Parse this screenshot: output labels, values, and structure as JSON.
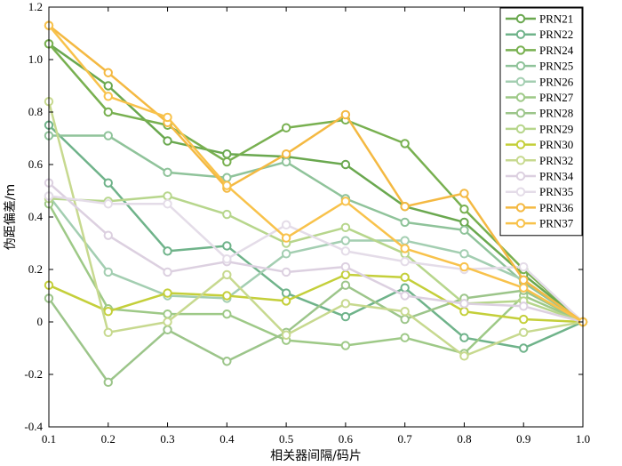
{
  "chart_data": {
    "type": "line",
    "title": "",
    "xlabel": "相关器间隔/码片",
    "ylabel": "伪距偏差/m",
    "xlim": [
      0.1,
      1.0
    ],
    "ylim": [
      -0.4,
      1.2
    ],
    "x_ticks": [
      "0.1",
      "0.2",
      "0.3",
      "0.4",
      "0.5",
      "0.6",
      "0.7",
      "0.8",
      "0.9",
      "1.0"
    ],
    "y_ticks": [
      "-0.4",
      "-0.2",
      "0",
      "0.2",
      "0.4",
      "0.6",
      "0.8",
      "1.0",
      "1.2"
    ],
    "grid": false,
    "legend_position": "top-right",
    "x": [
      0.1,
      0.2,
      0.3,
      0.4,
      0.5,
      0.6,
      0.7,
      0.8,
      0.9,
      1.0
    ],
    "series": [
      {
        "name": "PRN21",
        "color": "#6aa84f",
        "values": [
          1.06,
          0.9,
          0.69,
          0.64,
          0.63,
          0.6,
          0.44,
          0.38,
          0.18,
          0.0
        ]
      },
      {
        "name": "PRN22",
        "color": "#6fb38a",
        "values": [
          0.75,
          0.53,
          0.27,
          0.29,
          0.11,
          0.02,
          0.13,
          -0.06,
          -0.1,
          0.0
        ]
      },
      {
        "name": "PRN24",
        "color": "#78b050",
        "values": [
          1.06,
          0.8,
          0.75,
          0.61,
          0.74,
          0.77,
          0.68,
          0.43,
          0.2,
          0.0
        ]
      },
      {
        "name": "PRN25",
        "color": "#8fc39a",
        "values": [
          0.71,
          0.71,
          0.57,
          0.55,
          0.61,
          0.47,
          0.38,
          0.35,
          0.15,
          0.0
        ]
      },
      {
        "name": "PRN26",
        "color": "#a3ceb1",
        "values": [
          0.48,
          0.19,
          0.1,
          0.09,
          0.26,
          0.31,
          0.31,
          0.26,
          0.16,
          0.0
        ]
      },
      {
        "name": "PRN27",
        "color": "#9ec987",
        "values": [
          0.45,
          0.05,
          0.03,
          0.03,
          -0.07,
          -0.09,
          -0.06,
          -0.12,
          0.1,
          0.0
        ]
      },
      {
        "name": "PRN28",
        "color": "#9cc58a",
        "values": [
          0.09,
          -0.23,
          -0.03,
          -0.15,
          -0.04,
          0.14,
          0.01,
          0.09,
          0.12,
          0.0
        ]
      },
      {
        "name": "PRN29",
        "color": "#b7d68c",
        "values": [
          0.47,
          0.46,
          0.48,
          0.41,
          0.3,
          0.36,
          0.26,
          0.07,
          0.08,
          0.0
        ]
      },
      {
        "name": "PRN30",
        "color": "#c4cf3a",
        "values": [
          0.14,
          0.04,
          0.11,
          0.1,
          0.08,
          0.18,
          0.17,
          0.04,
          0.01,
          0.0
        ]
      },
      {
        "name": "PRN32",
        "color": "#c7d98f",
        "values": [
          0.84,
          -0.04,
          0.0,
          0.18,
          -0.05,
          0.07,
          0.04,
          -0.13,
          -0.04,
          0.0
        ]
      },
      {
        "name": "PRN34",
        "color": "#dcd0e0",
        "values": [
          0.53,
          0.33,
          0.19,
          0.23,
          0.19,
          0.21,
          0.1,
          0.07,
          0.06,
          0.0
        ]
      },
      {
        "name": "PRN35",
        "color": "#e4dce8",
        "values": [
          0.48,
          0.45,
          0.45,
          0.24,
          0.37,
          0.27,
          0.23,
          0.2,
          0.21,
          0.0
        ]
      },
      {
        "name": "PRN36",
        "color": "#f4b942",
        "values": [
          1.13,
          0.95,
          0.76,
          0.51,
          0.64,
          0.79,
          0.44,
          0.49,
          0.16,
          0.0
        ]
      },
      {
        "name": "PRN37",
        "color": "#f8c24b",
        "values": [
          1.13,
          0.86,
          0.78,
          0.52,
          0.32,
          0.46,
          0.28,
          0.21,
          0.13,
          0.0
        ]
      }
    ]
  }
}
